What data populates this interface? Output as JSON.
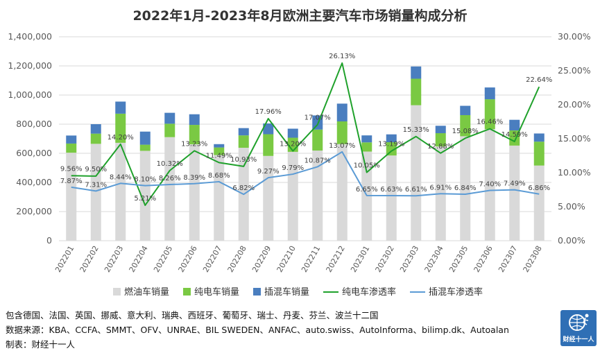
{
  "chart_data": {
    "type": "bar+line",
    "title": "2022年1月-2023年8月欧洲主要汽车市场销量构成分析",
    "categories": [
      "202201",
      "202202",
      "202203",
      "202204",
      "202205",
      "202206",
      "202207",
      "202208",
      "202209",
      "202210",
      "202211",
      "202212",
      "202301",
      "202302",
      "202303",
      "202304",
      "202305",
      "202306",
      "202307",
      "202308"
    ],
    "bar_series": [
      {
        "name": "燃油车销量",
        "color": "#d9d9d9",
        "values": [
          604000,
          665000,
          672000,
          617000,
          711000,
          662000,
          588000,
          638000,
          582000,
          610000,
          619000,
          663000,
          612000,
          585000,
          930000,
          647000,
          717000,
          766000,
          653000,
          516000
        ]
      },
      {
        "name": "纯电车销量",
        "color": "#7ac943",
        "values": [
          63000,
          70000,
          200000,
          42000,
          92000,
          133000,
          52000,
          85000,
          149000,
          97000,
          144000,
          156000,
          63000,
          91000,
          182000,
          91000,
          145000,
          205000,
          104000,
          164000
        ]
      },
      {
        "name": "插混车销量",
        "color": "#4a7ebf",
        "values": [
          55000,
          65000,
          83000,
          90000,
          75000,
          73000,
          23000,
          50000,
          74000,
          62000,
          97000,
          122000,
          48000,
          54000,
          84000,
          51000,
          64000,
          81000,
          73000,
          56000
        ]
      }
    ],
    "line_series": [
      {
        "name": "纯电车渗透率",
        "color": "#1fa12b",
        "values": [
          9.56,
          9.5,
          14.2,
          5.21,
          10.32,
          13.23,
          11.49,
          10.93,
          17.96,
          13.2,
          17.07,
          26.13,
          10.05,
          13.19,
          15.33,
          12.88,
          15.08,
          16.46,
          14.59,
          22.64
        ],
        "labels": [
          "9.56%",
          "9.50%",
          "14.20%",
          "5.21%",
          "10.32%",
          "13.23%",
          "11.49%",
          "10.93%",
          "17.96%",
          "13.20%",
          "17.07%",
          "26.13%",
          "10.05%",
          "13.19%",
          "15.33%",
          "12.88%",
          "15.08%",
          "16.46%",
          "14.59%",
          "22.64%"
        ]
      },
      {
        "name": "插混车渗透率",
        "color": "#5b9bd5",
        "values": [
          7.87,
          7.31,
          8.44,
          8.1,
          8.26,
          8.39,
          8.68,
          6.82,
          9.27,
          9.79,
          10.87,
          13.07,
          6.65,
          6.63,
          6.61,
          6.91,
          6.84,
          7.4,
          7.49,
          6.86
        ],
        "labels": [
          "7.87%",
          "7.31%",
          "8.44%",
          "8.10%",
          "8.26%",
          "8.39%",
          "8.68%",
          "6.82%",
          "9.27%",
          "9.79%",
          "10.87%",
          "13.07%",
          "6.65%",
          "6.63%",
          "6.61%",
          "6.91%",
          "6.84%",
          "7.40%",
          "7.49%",
          "6.86%"
        ]
      }
    ],
    "y_left": {
      "min": 0,
      "max": 1400000,
      "step": 200000,
      "ticks": [
        "0",
        "200,000",
        "400,000",
        "600,000",
        "800,000",
        "1,000,000",
        "1,200,000",
        "1,400,000"
      ]
    },
    "y_right": {
      "min": 0,
      "max": 30,
      "step": 5,
      "ticks": [
        "0.00%",
        "5.00%",
        "10.00%",
        "15.00%",
        "20.00%",
        "25.00%",
        "30.00%"
      ]
    },
    "grid": true,
    "legend_position": "bottom"
  },
  "notes": {
    "countries": "包含德国、法国、英国、挪威、意大利、瑞典、西班牙、葡萄牙、瑞士、丹麦、芬兰、波兰十二国",
    "sources": "数据来源：KBA、CCFA、SMMT、OFV、UNRAE、BIL SWEDEN、ANFAC、auto.swiss、AutoInforma、bilimp.dk、Autoalan",
    "author": "制表：财经十一人"
  },
  "logo": {
    "text": "财经十一人",
    "icon": "globe-runner-icon"
  }
}
